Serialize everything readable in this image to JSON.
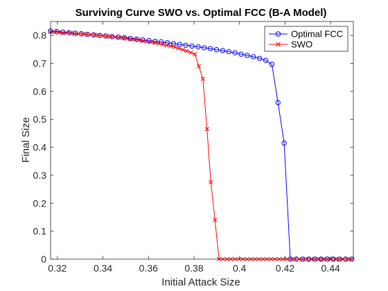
{
  "chart_data": {
    "type": "line",
    "title": "Surviving Curve SWO vs. Optimal FCC (B-A Model)",
    "xlabel": "Initial Attack Size",
    "ylabel": "Final Size",
    "xlim": [
      0.317,
      0.45
    ],
    "ylim": [
      0,
      0.85
    ],
    "xticks": [
      0.32,
      0.34,
      0.36,
      0.38,
      0.4,
      0.42,
      0.44
    ],
    "xtick_labels": [
      "0.32",
      "0.34",
      "0.36",
      "0.38",
      "0.4",
      "0.42",
      "0.44"
    ],
    "yticks": [
      0,
      0.1,
      0.2,
      0.3,
      0.4,
      0.5,
      0.6,
      0.7,
      0.8
    ],
    "ytick_labels": [
      "0",
      "0.1",
      "0.2",
      "0.3",
      "0.4",
      "0.5",
      "0.6",
      "0.7",
      "0.8"
    ],
    "grid": false,
    "legend_position": "top-right",
    "series": [
      {
        "name": "Optimal FCC",
        "color": "#0000ff",
        "marker": "circle",
        "x": [
          0.317,
          0.3197,
          0.3224,
          0.3251,
          0.3278,
          0.3305,
          0.3332,
          0.3359,
          0.3386,
          0.3413,
          0.344,
          0.3467,
          0.3494,
          0.3521,
          0.3548,
          0.3575,
          0.3602,
          0.3629,
          0.3656,
          0.3683,
          0.371,
          0.3737,
          0.3764,
          0.3791,
          0.3818,
          0.3845,
          0.3872,
          0.3899,
          0.3926,
          0.3953,
          0.398,
          0.4007,
          0.4034,
          0.4061,
          0.4088,
          0.4115,
          0.4142,
          0.4169,
          0.4196,
          0.4223,
          0.425,
          0.4277,
          0.4304,
          0.4331,
          0.4358,
          0.4385,
          0.4412,
          0.4439,
          0.4466,
          0.4493
        ],
        "y": [
          0.816,
          0.814,
          0.812,
          0.81,
          0.808,
          0.806,
          0.804,
          0.802,
          0.8,
          0.798,
          0.796,
          0.794,
          0.792,
          0.789,
          0.787,
          0.784,
          0.782,
          0.779,
          0.777,
          0.774,
          0.771,
          0.768,
          0.765,
          0.762,
          0.759,
          0.756,
          0.753,
          0.749,
          0.746,
          0.742,
          0.738,
          0.733,
          0.729,
          0.724,
          0.718,
          0.711,
          0.697,
          0.56,
          0.415,
          0.0,
          0.0,
          0.0,
          0.0,
          0.0,
          0.0,
          0.0,
          0.0,
          0.0,
          0.0,
          0.0
        ]
      },
      {
        "name": "SWO",
        "color": "#ff0000",
        "marker": "x",
        "x": [
          0.317,
          0.3188,
          0.3205,
          0.3223,
          0.324,
          0.3258,
          0.3276,
          0.3293,
          0.3311,
          0.3328,
          0.3346,
          0.3364,
          0.3381,
          0.3399,
          0.3416,
          0.3434,
          0.3452,
          0.3469,
          0.3487,
          0.3504,
          0.3522,
          0.354,
          0.3557,
          0.3575,
          0.3592,
          0.361,
          0.3628,
          0.3645,
          0.3663,
          0.368,
          0.3698,
          0.3716,
          0.3733,
          0.3751,
          0.3768,
          0.3786,
          0.3804,
          0.3821,
          0.3839,
          0.3857,
          0.3874,
          0.3892,
          0.391,
          0.3927,
          0.3945,
          0.3962,
          0.398,
          0.3998,
          0.4015,
          0.4033,
          0.405,
          0.4068,
          0.4086,
          0.4103,
          0.4121,
          0.4138,
          0.4156,
          0.4174,
          0.4191,
          0.4209,
          0.4226,
          0.4244,
          0.4262,
          0.4279,
          0.4297,
          0.4314,
          0.4332,
          0.435,
          0.4367,
          0.4385,
          0.4402,
          0.442,
          0.4438,
          0.4455,
          0.4473,
          0.449
        ],
        "y": [
          0.813,
          0.812,
          0.811,
          0.81,
          0.809,
          0.808,
          0.807,
          0.806,
          0.805,
          0.804,
          0.803,
          0.802,
          0.8,
          0.799,
          0.797,
          0.796,
          0.794,
          0.793,
          0.791,
          0.789,
          0.787,
          0.785,
          0.783,
          0.781,
          0.778,
          0.776,
          0.774,
          0.771,
          0.768,
          0.765,
          0.762,
          0.758,
          0.754,
          0.749,
          0.744,
          0.739,
          0.733,
          0.69,
          0.645,
          0.465,
          0.275,
          0.14,
          0.0,
          0.0,
          0.0,
          0.0,
          0.0,
          0.0,
          0.0,
          0.0,
          0.0,
          0.0,
          0.0,
          0.0,
          0.0,
          0.0,
          0.0,
          0.0,
          0.0,
          0.0,
          0.0,
          0.0,
          0.0,
          0.0,
          0.0,
          0.0,
          0.0,
          0.0,
          0.0,
          0.0,
          0.0,
          0.0,
          0.0,
          0.0,
          0.0,
          0.0
        ]
      }
    ]
  }
}
